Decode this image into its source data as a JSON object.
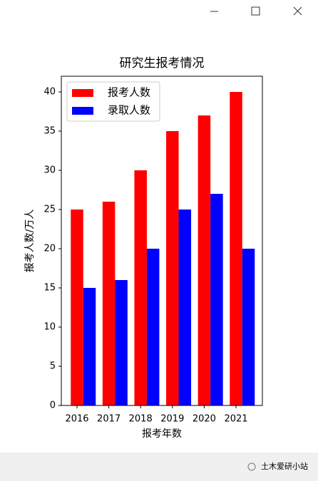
{
  "chart_data": {
    "type": "bar",
    "title": "研究生报考情况",
    "xlabel": "报考年数",
    "ylabel": "报考人数/万人",
    "categories": [
      "2016",
      "2017",
      "2018",
      "2019",
      "2020",
      "2021"
    ],
    "series": [
      {
        "name": "报考人数",
        "color": "#ff0000",
        "values": [
          25,
          26,
          30,
          35,
          37,
          40
        ]
      },
      {
        "name": "录取人数",
        "color": "#0000ff",
        "values": [
          15,
          16,
          20,
          25,
          27,
          20
        ]
      }
    ],
    "ylim": [
      0,
      42
    ],
    "yticks": [
      0,
      5,
      10,
      15,
      20,
      25,
      30,
      35,
      40
    ],
    "legend": "upper left"
  },
  "watermark": "土木爱研小站"
}
